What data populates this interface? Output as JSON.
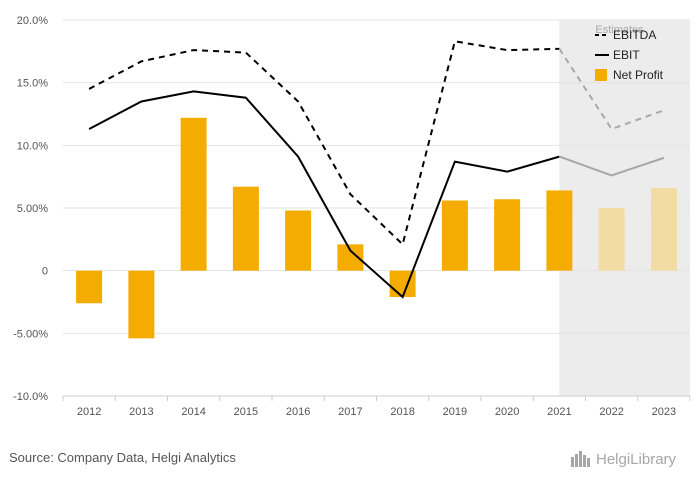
{
  "chart_data": {
    "type": "bar",
    "categories": [
      "2012",
      "2013",
      "2014",
      "2015",
      "2016",
      "2017",
      "2018",
      "2019",
      "2020",
      "2021",
      "2022",
      "2023"
    ],
    "y_ticks": [
      20,
      15,
      10,
      5,
      0,
      -5,
      -10
    ],
    "y_tick_labels": [
      "20.0%",
      "15.0%",
      "10.0%",
      "5.00%",
      "0",
      "-5.00%",
      "-10.0%"
    ],
    "ylim": [
      -10,
      20
    ],
    "estimate_start_index": 10,
    "estimate_label": "Estimates",
    "series": [
      {
        "name": "EBITDA",
        "kind": "line-dashed",
        "color": "#000000",
        "values": [
          14.5,
          16.7,
          17.6,
          17.4,
          13.5,
          6.1,
          2.1,
          18.3,
          17.6,
          17.7,
          11.3,
          12.8
        ]
      },
      {
        "name": "EBIT",
        "kind": "line",
        "color": "#000000",
        "values": [
          11.3,
          13.5,
          14.3,
          13.8,
          9.1,
          1.6,
          -2.1,
          8.7,
          7.9,
          9.1,
          7.6,
          9.0
        ]
      },
      {
        "name": "Net Profit",
        "kind": "bar",
        "color": "#f5ac00",
        "values": [
          -2.6,
          -5.4,
          12.2,
          6.7,
          4.8,
          2.1,
          -2.1,
          5.6,
          5.7,
          6.4,
          5.0,
          6.6
        ]
      }
    ],
    "legend": [
      "EBITDA",
      "EBIT",
      "Net Profit"
    ],
    "legend_position": "top-right",
    "estimate_colors": {
      "line": "#a8a8a8",
      "bar": "#f3dba4",
      "band": "#ececec"
    }
  },
  "footer": {
    "source": "Source: Company Data, Helgi Analytics",
    "brand": "HelgiLibrary"
  }
}
